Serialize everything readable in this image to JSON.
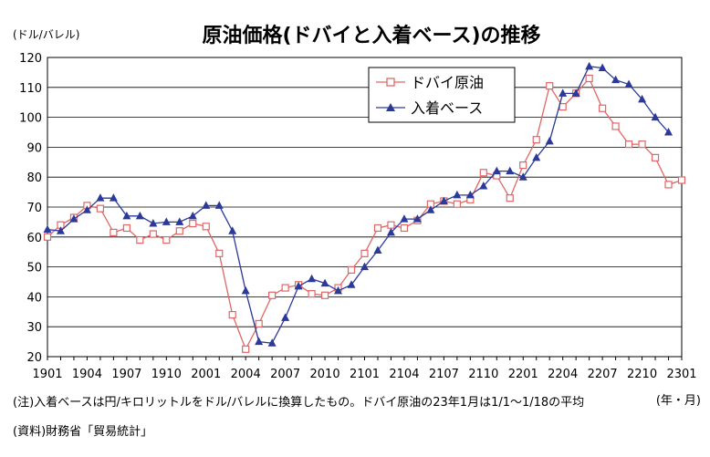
{
  "chart_data": {
    "type": "line",
    "title": "原油価格(ドバイと入着ベース)の推移",
    "ylabel": "(ドル/バレル)",
    "xlabel": "",
    "ylim": [
      20,
      120
    ],
    "yticks": [
      20,
      30,
      40,
      50,
      60,
      70,
      80,
      90,
      100,
      110,
      120
    ],
    "grid": true,
    "legend_position": "top-right",
    "x_tick_labels": [
      "1901",
      "1904",
      "1907",
      "1910",
      "2001",
      "2004",
      "2007",
      "2010",
      "2101",
      "2104",
      "2107",
      "2110",
      "2201",
      "2204",
      "2207",
      "2210",
      "2301"
    ],
    "x_unit": "(年・月)",
    "x": [
      "1901",
      "1902",
      "1903",
      "1904",
      "1905",
      "1906",
      "1907",
      "1908",
      "1909",
      "1910",
      "1911",
      "1912",
      "2001",
      "2002",
      "2003",
      "2004",
      "2005",
      "2006",
      "2007",
      "2008",
      "2009",
      "2010",
      "2011",
      "2012",
      "2101",
      "2102",
      "2103",
      "2104",
      "2105",
      "2106",
      "2107",
      "2108",
      "2109",
      "2110",
      "2111",
      "2112",
      "2201",
      "2202",
      "2203",
      "2204",
      "2205",
      "2206",
      "2207",
      "2208",
      "2209",
      "2210",
      "2211",
      "2212",
      "2301"
    ],
    "series": [
      {
        "name": "ドバイ原油",
        "color": "#e06666",
        "marker": "open-square",
        "values": [
          60,
          64,
          66.5,
          70.5,
          69.5,
          61.5,
          63,
          59,
          61,
          59,
          62,
          64.5,
          63.5,
          54.5,
          34,
          22.5,
          31,
          40.5,
          43,
          44,
          41,
          40.5,
          43,
          49,
          54.5,
          63,
          64,
          63,
          65.5,
          71,
          72,
          71,
          72.5,
          81.5,
          80.5,
          73,
          84,
          92.5,
          110.5,
          103.5,
          108,
          113,
          103,
          97,
          91,
          91,
          86.5,
          77.5,
          79
        ]
      },
      {
        "name": "入着ベース",
        "color": "#2b3a9a",
        "marker": "filled-triangle",
        "values": [
          62.5,
          62,
          66,
          69,
          73,
          73,
          67,
          67,
          64.5,
          65,
          65,
          67,
          70.5,
          70.5,
          62,
          42,
          25,
          24.5,
          33,
          43.5,
          46,
          44.5,
          42,
          44,
          50,
          55.5,
          61.5,
          66,
          66,
          69,
          72,
          74,
          74,
          77,
          82,
          82,
          80,
          86.5,
          92,
          108,
          108,
          117,
          116.5,
          112.5,
          111,
          106,
          100,
          95,
          null
        ]
      }
    ]
  },
  "footer": {
    "note": "(注)入着ベースは円/キロリットルをドル/バレルに換算したもの。ドバイ原油の23年1月は1/1～1/18の平均",
    "source": "(資料)財務省「貿易統計」"
  }
}
